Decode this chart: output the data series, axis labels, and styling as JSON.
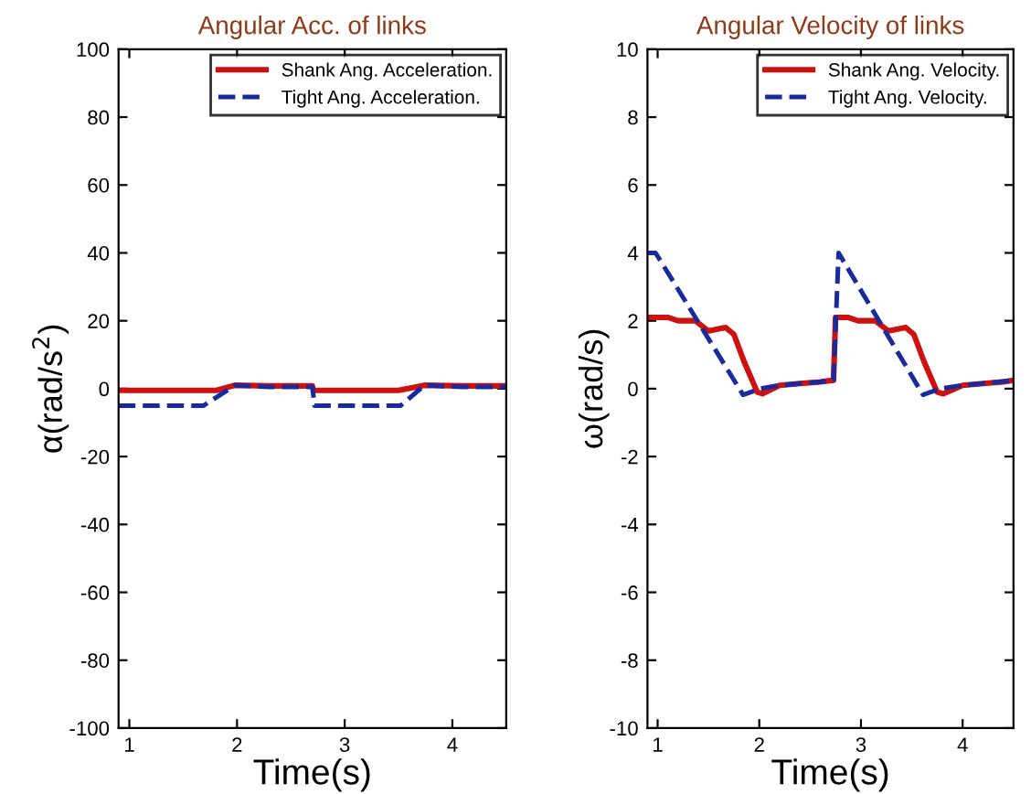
{
  "chart_data": [
    {
      "type": "line",
      "title": "Angular Acc. of links",
      "xlabel": "Time(s)",
      "ylabel": "α(rad/s$^{2}$)",
      "xlim": [
        0.9,
        4.5
      ],
      "ylim": [
        -100,
        100
      ],
      "xticks": [
        1,
        2,
        3,
        4
      ],
      "yticks": [
        -100,
        -80,
        -60,
        -40,
        -20,
        0,
        20,
        40,
        60,
        80,
        100
      ],
      "legend": "top right",
      "grid": false,
      "series": [
        {
          "name": "Shank Ang. Acceleration.",
          "color": "#cc1111",
          "line_style": "solid",
          "x": [
            0.9,
            1.3,
            1.81,
            1.98,
            2.3,
            2.7,
            2.71,
            3.1,
            3.5,
            3.74,
            4.1,
            4.5
          ],
          "values": [
            -0.5,
            -0.5,
            -0.5,
            1,
            0.8,
            0.8,
            -0.5,
            -0.5,
            -0.5,
            1,
            0.8,
            0.8
          ]
        },
        {
          "name": "Tight Ang. Acceleration.",
          "color": "#1a2a9a",
          "line_style": "dashed",
          "x": [
            0.9,
            1.3,
            1.69,
            1.98,
            2.3,
            2.7,
            2.72,
            3.1,
            3.52,
            3.74,
            4.1,
            4.5
          ],
          "values": [
            -5,
            -5,
            -5,
            1,
            0.5,
            0.5,
            -5,
            -5,
            -5,
            1,
            0.5,
            0.5
          ]
        }
      ]
    },
    {
      "type": "line",
      "title": "Angular Velocity of links",
      "xlabel": "Time(s)",
      "ylabel": "ω(rad/s)",
      "xlim": [
        0.9,
        4.5
      ],
      "ylim": [
        -10,
        10
      ],
      "xticks": [
        1,
        2,
        3,
        4
      ],
      "yticks": [
        -10,
        -8,
        -6,
        -4,
        -2,
        0,
        2,
        4,
        6,
        8,
        10
      ],
      "legend": "top right",
      "grid": false,
      "series": [
        {
          "name": "Shank Ang. Velocity.",
          "color": "#cc1111",
          "line_style": "solid",
          "x": [
            0.9,
            0.98,
            1.1,
            1.2,
            1.37,
            1.5,
            1.67,
            1.75,
            1.85,
            1.98,
            2.03,
            2.2,
            2.4,
            2.6,
            2.73,
            2.75,
            2.87,
            2.97,
            3.14,
            3.27,
            3.44,
            3.52,
            3.62,
            3.75,
            3.81,
            4.0,
            4.2,
            4.4,
            4.5
          ],
          "values": [
            2.1,
            2.1,
            2.1,
            2.0,
            2.0,
            1.7,
            1.8,
            1.6,
            0.8,
            -0.1,
            -0.15,
            0.1,
            0.15,
            0.2,
            0.25,
            2.1,
            2.1,
            2.0,
            2.0,
            1.7,
            1.8,
            1.6,
            0.8,
            -0.1,
            -0.15,
            0.1,
            0.15,
            0.2,
            0.25
          ]
        },
        {
          "name": "Tight Ang. Velocity.",
          "color": "#1a2a9a",
          "line_style": "dashed",
          "x": [
            0.9,
            0.98,
            1.84,
            2.01,
            2.2,
            2.4,
            2.6,
            2.73,
            2.78,
            3.61,
            3.78,
            4.0,
            4.2,
            4.5
          ],
          "values": [
            4.0,
            4.0,
            -0.18,
            0,
            0.1,
            0.15,
            0.2,
            0.25,
            4.0,
            -0.18,
            0,
            0.1,
            0.15,
            0.25
          ]
        }
      ]
    }
  ]
}
